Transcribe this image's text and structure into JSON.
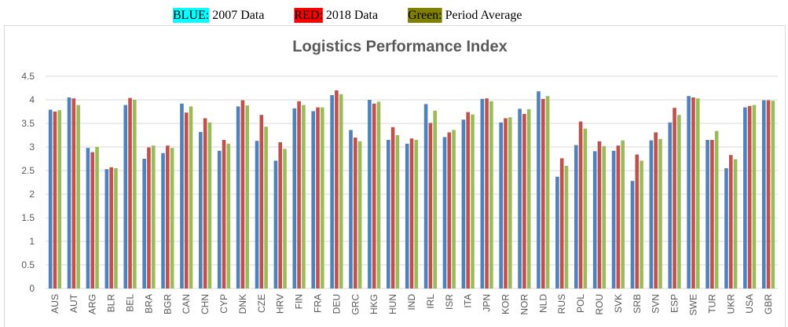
{
  "chart_data": {
    "type": "bar",
    "title": "Logistics Performance Index",
    "categories": [
      "AUS",
      "AUT",
      "ARG",
      "BLR",
      "BEL",
      "BRA",
      "BGR",
      "CAN",
      "CHN",
      "CYP",
      "DNK",
      "CZE",
      "HRV",
      "FIN",
      "FRA",
      "DEU",
      "GRC",
      "HKG",
      "HUN",
      "IND",
      "IRL",
      "ISR",
      "ITA",
      "JPN",
      "KOR",
      "NOR",
      "NLD",
      "RUS",
      "POL",
      "ROU",
      "SVK",
      "SRB",
      "SVN",
      "ESP",
      "SWE",
      "TUR",
      "UKR",
      "USA",
      "GBR"
    ],
    "series": [
      {
        "name": "2007 Data",
        "key_label": "BLUE:",
        "key_highlight": "#00ffff",
        "color": "#4f81bd",
        "values": [
          3.79,
          4.05,
          2.98,
          2.53,
          3.89,
          2.75,
          2.87,
          3.92,
          3.32,
          2.92,
          3.86,
          3.13,
          2.71,
          3.82,
          3.76,
          4.1,
          3.36,
          4.0,
          3.15,
          3.07,
          3.91,
          3.21,
          3.58,
          4.02,
          3.52,
          3.81,
          4.18,
          2.37,
          3.04,
          2.91,
          2.92,
          2.28,
          3.14,
          3.52,
          4.08,
          3.15,
          2.55,
          3.84,
          3.99
        ]
      },
      {
        "name": "2018 Data",
        "key_label": "RED:",
        "key_highlight": "#ff0000",
        "color": "#c0504d",
        "values": [
          3.75,
          4.03,
          2.89,
          2.57,
          4.04,
          2.99,
          3.03,
          3.73,
          3.61,
          3.15,
          3.99,
          3.68,
          3.1,
          3.97,
          3.84,
          4.2,
          3.2,
          3.92,
          3.42,
          3.18,
          3.51,
          3.31,
          3.74,
          4.03,
          3.61,
          3.7,
          4.02,
          2.76,
          3.54,
          3.12,
          3.03,
          2.84,
          3.31,
          3.83,
          4.05,
          3.15,
          2.83,
          3.87,
          3.99
        ]
      },
      {
        "name": "Period Average",
        "key_label": "Green:",
        "key_highlight": "#808000",
        "color": "#9bbb59",
        "values": [
          3.78,
          3.89,
          3.0,
          2.55,
          4.0,
          3.03,
          2.98,
          3.86,
          3.52,
          3.07,
          3.88,
          3.43,
          2.96,
          3.89,
          3.84,
          4.12,
          3.12,
          3.96,
          3.25,
          3.15,
          3.77,
          3.36,
          3.69,
          3.97,
          3.63,
          3.8,
          4.08,
          2.6,
          3.39,
          3.02,
          3.14,
          2.71,
          3.17,
          3.68,
          4.03,
          3.34,
          2.74,
          3.89,
          3.98
        ]
      }
    ],
    "ylim": [
      0,
      4.5
    ],
    "yticks": [
      0,
      0.5,
      1,
      1.5,
      2,
      2.5,
      3,
      3.5,
      4,
      4.5
    ],
    "grid": true
  }
}
